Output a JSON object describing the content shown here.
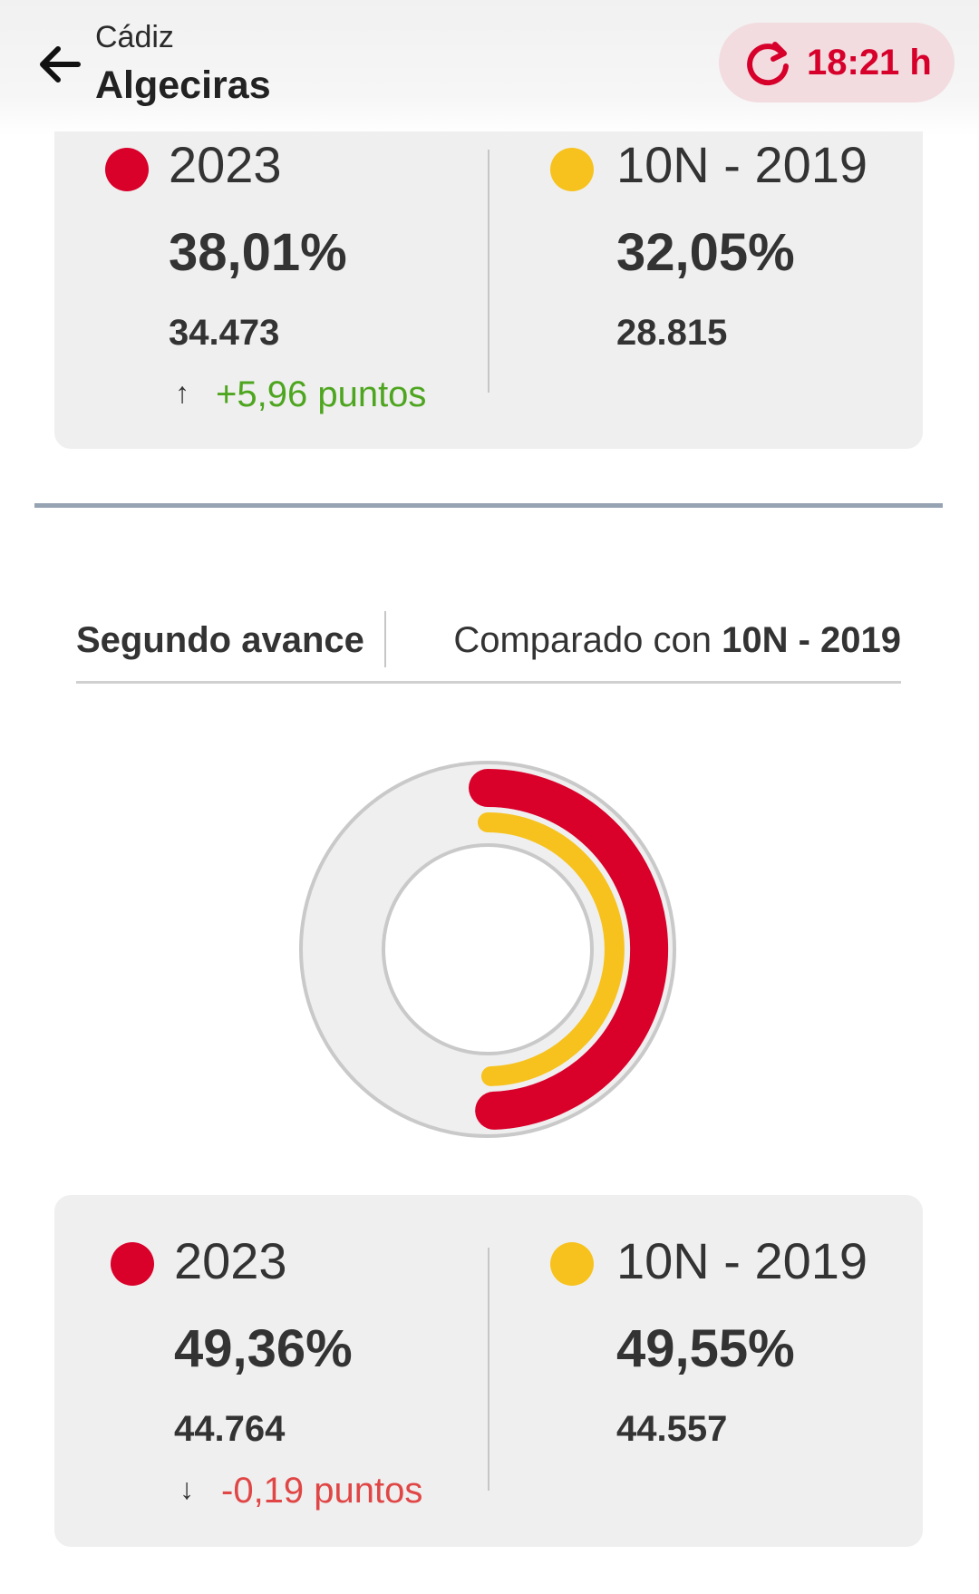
{
  "header": {
    "province": "Cádiz",
    "city": "Algeciras",
    "refresh_time": "18:21 h",
    "icons": {
      "back": "arrow-left-icon",
      "refresh": "refresh-icon"
    }
  },
  "colors": {
    "current": "#d9002a",
    "previous": "#f7c21d",
    "positive": "#4ea51f",
    "negative": "#e04646",
    "accent": "#d6002b"
  },
  "first_card": {
    "current": {
      "label": "2023",
      "percent": "38,01%",
      "votes": "34.473",
      "delta": "+5,96 puntos",
      "delta_direction": "up"
    },
    "previous": {
      "label": "10N - 2019",
      "percent": "32,05%",
      "votes": "28.815"
    }
  },
  "tabs": {
    "left": "Segundo avance",
    "right_prefix": "Comparado con ",
    "right_bold": "10N - 2019"
  },
  "donut": {
    "outer_percent": 49.36,
    "inner_percent": 49.55
  },
  "second_card": {
    "current": {
      "label": "2023",
      "percent": "49,36%",
      "votes": "44.764",
      "delta": "-0,19 puntos",
      "delta_direction": "down"
    },
    "previous": {
      "label": "10N - 2019",
      "percent": "49,55%",
      "votes": "44.557"
    }
  }
}
